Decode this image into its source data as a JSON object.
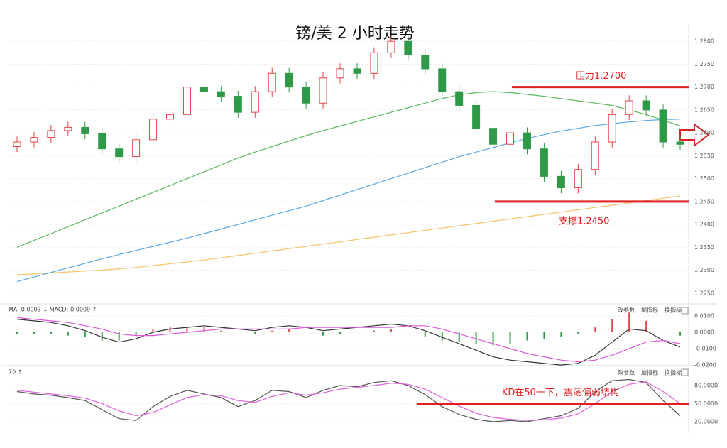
{
  "title": "镑/美 2 小时走势",
  "chart_data": [
    {
      "type": "candlestick",
      "up_color": "#e04545",
      "down_color": "#2e9a48",
      "open": [
        1.257,
        1.258,
        1.259,
        1.2605,
        1.2612,
        1.2598,
        1.2565,
        1.2548,
        1.2585,
        1.263,
        1.264,
        1.27,
        1.269,
        1.268,
        1.2645,
        1.269,
        1.273,
        1.27,
        1.2665,
        1.272,
        1.274,
        1.273,
        1.2775,
        1.28,
        1.277,
        1.274,
        1.269,
        1.266,
        1.261,
        1.2575,
        1.26,
        1.2565,
        1.2505,
        1.248,
        1.252,
        1.258,
        1.264,
        1.267,
        1.265,
        1.258
      ],
      "high": [
        1.2592,
        1.2602,
        1.2617,
        1.2624,
        1.2624,
        1.261,
        1.2577,
        1.2597,
        1.2642,
        1.2652,
        1.2712,
        1.2712,
        1.2702,
        1.2692,
        1.2702,
        1.2742,
        1.2742,
        1.2712,
        1.2732,
        1.2752,
        1.2752,
        1.2787,
        1.2812,
        1.2812,
        1.2782,
        1.2752,
        1.2702,
        1.2672,
        1.2622,
        1.2612,
        1.2612,
        1.2577,
        1.2517,
        1.2532,
        1.2592,
        1.2652,
        1.2682,
        1.2682,
        1.2662,
        1.2592
      ],
      "low": [
        1.2558,
        1.2568,
        1.2578,
        1.2593,
        1.2586,
        1.2553,
        1.2536,
        1.2536,
        1.2573,
        1.2618,
        1.2628,
        1.2678,
        1.2668,
        1.2633,
        1.2633,
        1.2678,
        1.2688,
        1.2653,
        1.2653,
        1.2708,
        1.2718,
        1.2718,
        1.2763,
        1.2758,
        1.2728,
        1.2678,
        1.2648,
        1.2598,
        1.2563,
        1.2563,
        1.2553,
        1.2493,
        1.2468,
        1.2468,
        1.2508,
        1.2568,
        1.2628,
        1.2638,
        1.2568,
        1.2563
      ],
      "close": [
        1.258,
        1.259,
        1.2605,
        1.2612,
        1.2598,
        1.2565,
        1.2548,
        1.2585,
        1.263,
        1.264,
        1.27,
        1.269,
        1.268,
        1.2645,
        1.269,
        1.273,
        1.27,
        1.2665,
        1.272,
        1.274,
        1.273,
        1.2775,
        1.28,
        1.277,
        1.274,
        1.269,
        1.266,
        1.261,
        1.2575,
        1.26,
        1.2565,
        1.2505,
        1.248,
        1.252,
        1.258,
        1.264,
        1.267,
        1.265,
        1.258,
        1.2575
      ],
      "series": [
        {
          "color": "#f5c36a",
          "values": [
            1.229,
            1.2292,
            1.2294,
            1.2296,
            1.2298,
            1.23,
            1.2303,
            1.2306,
            1.231,
            1.2314,
            1.2318,
            1.2322,
            1.2327,
            1.2332,
            1.2337,
            1.2342,
            1.2347,
            1.2352,
            1.2357,
            1.2362,
            1.2367,
            1.2372,
            1.2377,
            1.2382,
            1.2387,
            1.2392,
            1.2397,
            1.2402,
            1.2407,
            1.2412,
            1.2417,
            1.2422,
            1.2427,
            1.2432,
            1.2437,
            1.2442,
            1.2447,
            1.2452,
            1.2457,
            1.2462
          ]
        },
        {
          "color": "#5aa8e6",
          "values": [
            1.2275,
            1.2285,
            1.2295,
            1.2305,
            1.2315,
            1.2325,
            1.2334,
            1.2343,
            1.2352,
            1.2361,
            1.237,
            1.238,
            1.239,
            1.24,
            1.241,
            1.242,
            1.243,
            1.244,
            1.2452,
            1.2464,
            1.2476,
            1.2488,
            1.25,
            1.2512,
            1.2524,
            1.2536,
            1.2548,
            1.2558,
            1.2568,
            1.2578,
            1.2588,
            1.2596,
            1.2604,
            1.261,
            1.2616,
            1.262,
            1.2624,
            1.2627,
            1.2629,
            1.263
          ]
        },
        {
          "color": "#5cb85c",
          "values": [
            1.235,
            1.2365,
            1.238,
            1.2395,
            1.241,
            1.2425,
            1.244,
            1.2455,
            1.247,
            1.2485,
            1.25,
            1.2515,
            1.253,
            1.2545,
            1.2558,
            1.257,
            1.2582,
            1.2594,
            1.2605,
            1.2615,
            1.2625,
            1.2635,
            1.2645,
            1.2655,
            1.2665,
            1.2675,
            1.2683,
            1.2688,
            1.269,
            1.2688,
            1.2684,
            1.268,
            1.2675,
            1.267,
            1.2665,
            1.266,
            1.265,
            1.264,
            1.2628,
            1.2615
          ]
        }
      ],
      "ylim": [
        1.2231,
        1.2836
      ],
      "yticks": [
        {
          "value": 1.28,
          "label": "1.2800"
        },
        {
          "value": 1.275,
          "label": "1.2750"
        },
        {
          "value": 1.27,
          "label": "1.2700"
        },
        {
          "value": 1.265,
          "label": "1.2650"
        },
        {
          "value": 1.26,
          "label": "1.2600"
        },
        {
          "value": 1.255,
          "label": "1.2550"
        },
        {
          "value": 1.25,
          "label": "1.2500"
        },
        {
          "value": 1.245,
          "label": "1.2450"
        },
        {
          "value": 1.24,
          "label": "1.2400"
        },
        {
          "value": 1.235,
          "label": "1.2350"
        },
        {
          "value": 1.23,
          "label": "1.2300"
        },
        {
          "value": 1.225,
          "label": "1.2250"
        }
      ],
      "grid": true,
      "levels": [
        {
          "label": "压力1.2700",
          "value": 1.27,
          "start": 0.74,
          "label_below": false
        },
        {
          "label": "支撑1.2450",
          "value": 1.245,
          "start": 0.715,
          "label_below": true
        }
      ]
    },
    {
      "type": "macd",
      "header": "MA -0.0003 ↓ MACD:-0.0009 ↑",
      "buttons": [
        "改参数",
        "加指标",
        "换指标"
      ],
      "series": [
        {
          "type": "bar",
          "color": "#e04545",
          "neg_color": "#2e9a48",
          "values": [
            -0.001,
            -0.001,
            -0.001,
            -0.002,
            -0.003,
            -0.005,
            -0.005,
            -0.002,
            0.002,
            0.003,
            0.003,
            0.003,
            0.001,
            0.0,
            -0.001,
            0.001,
            0.002,
            0.0,
            -0.002,
            -0.001,
            0.0,
            0.001,
            0.002,
            0.0,
            -0.003,
            -0.005,
            -0.006,
            -0.007,
            -0.008,
            -0.007,
            -0.005,
            -0.004,
            -0.003,
            -0.001,
            0.003,
            0.008,
            0.012,
            0.007,
            0.0,
            -0.002
          ]
        },
        {
          "type": "line",
          "color": "#333333",
          "values": [
            0.008,
            0.007,
            0.006,
            0.004,
            0.001,
            -0.003,
            -0.006,
            -0.004,
            0.0,
            0.002,
            0.003,
            0.004,
            0.003,
            0.002,
            0.001,
            0.003,
            0.004,
            0.003,
            0.001,
            0.002,
            0.003,
            0.004,
            0.005,
            0.004,
            0.001,
            -0.003,
            -0.007,
            -0.011,
            -0.015,
            -0.017,
            -0.018,
            -0.019,
            -0.02,
            -0.019,
            -0.014,
            -0.006,
            0.002,
            0.001,
            -0.005,
            -0.009
          ]
        },
        {
          "type": "line",
          "color": "#e056e0",
          "values": [
            0.009,
            0.008,
            0.007,
            0.006,
            0.004,
            0.002,
            -0.001,
            -0.002,
            -0.002,
            -0.001,
            0.0,
            0.001,
            0.002,
            0.002,
            0.002,
            0.002,
            0.002,
            0.003,
            0.003,
            0.003,
            0.003,
            0.003,
            0.003,
            0.004,
            0.004,
            0.002,
            -0.001,
            -0.004,
            -0.007,
            -0.01,
            -0.013,
            -0.015,
            -0.017,
            -0.018,
            -0.017,
            -0.014,
            -0.01,
            -0.006,
            -0.005,
            -0.007
          ]
        }
      ],
      "ylim": [
        -0.0191,
        0.0165
      ],
      "yticks": [
        {
          "value": 0.01,
          "label": "0.0100"
        },
        {
          "value": 0,
          "label": "0.0000"
        },
        {
          "value": -0.01,
          "label": "-0.0100"
        },
        {
          "value": -0.02,
          "label": "-0.0200"
        }
      ],
      "grid": true
    },
    {
      "type": "kd",
      "header": "70 ↑",
      "buttons": [
        "改参数",
        "加指标",
        "换指标"
      ],
      "series": [
        {
          "type": "line",
          "color": "#555555",
          "values": [
            70,
            66,
            64,
            60,
            55,
            40,
            25,
            22,
            45,
            62,
            72,
            66,
            60,
            45,
            55,
            72,
            70,
            60,
            72,
            80,
            78,
            85,
            88,
            80,
            65,
            45,
            32,
            24,
            20,
            22,
            20,
            25,
            30,
            42,
            70,
            88,
            90,
            85,
            55,
            30
          ]
        },
        {
          "type": "line",
          "color": "#e060e0",
          "values": [
            72,
            69,
            66,
            63,
            59,
            50,
            38,
            30,
            35,
            48,
            60,
            65,
            63,
            55,
            52,
            62,
            68,
            64,
            68,
            74,
            77,
            80,
            84,
            82,
            74,
            60,
            46,
            34,
            27,
            24,
            22,
            23,
            26,
            33,
            50,
            70,
            82,
            86,
            70,
            50
          ]
        }
      ],
      "ylim": [
        9.4,
        109.4
      ],
      "yticks": [
        {
          "value": 80,
          "label": "80.0000"
        },
        {
          "value": 50,
          "label": "50.0000"
        },
        {
          "value": 20,
          "label": "20.0000"
        }
      ],
      "grid": true,
      "levels": [
        {
          "label": "KD在50一下，震荡偏弱结构",
          "value": 50,
          "start": 0.6,
          "label_below": false
        }
      ]
    }
  ]
}
